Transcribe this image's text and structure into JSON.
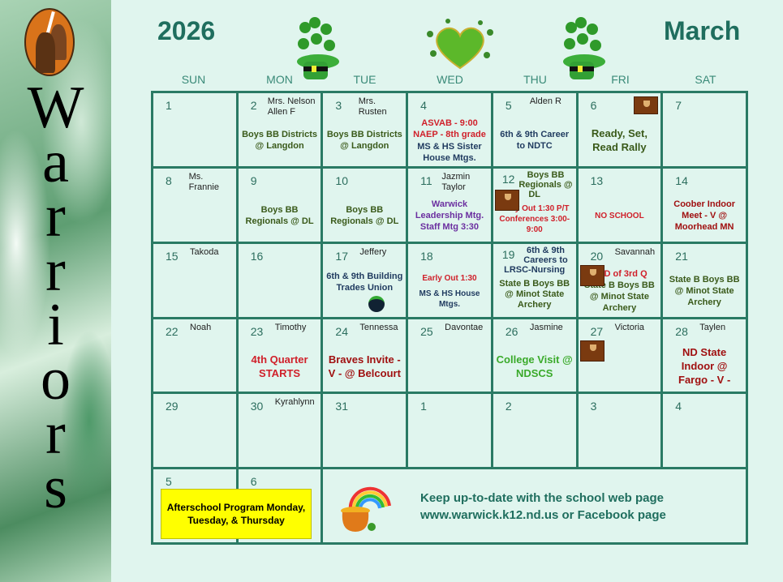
{
  "sidebar": {
    "word": "Warriors",
    "logo": "warriors-logo"
  },
  "header": {
    "year": "2026",
    "month": "March"
  },
  "days_of_week": [
    "SUN",
    "MON",
    "TUE",
    "WED",
    "THU",
    "FRI",
    "SAT"
  ],
  "colors": {
    "heading": "#1f6e5e",
    "grid": "#2a7a64",
    "background": "#e0f5ee",
    "green": "#3a5a1a",
    "navy": "#1f3a5f",
    "red": "#d0202a",
    "darkred": "#a01010",
    "purple": "#6b2fa0",
    "bright_green": "#3aaa2a",
    "highlight": "#ffff00"
  },
  "cells": [
    {
      "day": "1"
    },
    {
      "day": "2",
      "name": "Mrs. Nelson Allen F",
      "events": [
        {
          "text": "Boys BB  Districts @ Langdon",
          "color": "green"
        }
      ]
    },
    {
      "day": "3",
      "name": "Mrs. Rusten",
      "events": [
        {
          "text": "Boys BB  Districts @ Langdon",
          "color": "green"
        }
      ]
    },
    {
      "day": "4",
      "events": [
        {
          "text": "ASVAB - 9:00 NAEP - 8th grade",
          "color": "red"
        },
        {
          "text": "MS & HS Sister House Mtgs.",
          "color": "navy"
        }
      ]
    },
    {
      "day": "5",
      "name": "Alden R",
      "events": [
        {
          "text": "6th & 9th Career to NDTC",
          "color": "navy"
        }
      ]
    },
    {
      "day": "6",
      "icon": "book-icon",
      "events": [
        {
          "text": "Ready, Set, Read Rally",
          "color": "green",
          "big": true
        }
      ]
    },
    {
      "day": "7"
    },
    {
      "day": "8",
      "name": "Ms. Frannie"
    },
    {
      "day": "9",
      "events": [
        {
          "text": "Boys BB Regionals @ DL",
          "color": "green"
        }
      ]
    },
    {
      "day": "10",
      "events": [
        {
          "text": "Boys BB Regionals @ DL",
          "color": "green"
        }
      ]
    },
    {
      "day": "11",
      "name": "Jazmin Taylor",
      "events": [
        {
          "text": "Warwick Leadership Mtg. Staff Mtg 3:30",
          "color": "purple"
        }
      ]
    },
    {
      "day": "12",
      "name": "Boys BB Regionals @ DL",
      "icon": "book-icon",
      "events": [
        {
          "text": "Early Out 1:30 P/T  Conferences 3:00-9:00",
          "color": "red",
          "small": true
        }
      ]
    },
    {
      "day": "13",
      "events": [
        {
          "text": "NO SCHOOL",
          "color": "red",
          "small": true
        }
      ]
    },
    {
      "day": "14",
      "events": [
        {
          "text": "Coober Indoor Meet - V   @ Moorhead MN",
          "color": "darkred"
        }
      ]
    },
    {
      "day": "15",
      "name": "Takoda"
    },
    {
      "day": "16"
    },
    {
      "day": "17",
      "name": "Jeffery",
      "icon": "st-patricks-pot-icon",
      "events": [
        {
          "text": "6th & 9th Building Trades Union",
          "color": "navy"
        }
      ]
    },
    {
      "day": "18",
      "events": [
        {
          "text": "Early Out 1:30",
          "color": "red",
          "small": true
        },
        {
          "text": "MS & HS House Mtgs.",
          "color": "navy",
          "small": true
        }
      ]
    },
    {
      "day": "19",
      "name": "6th & 9th Careers to LRSC-Nursing",
      "events": [
        {
          "text": "State B Boys BB @ Minot State Archery",
          "color": "green"
        }
      ]
    },
    {
      "day": "20",
      "name": "Savannah",
      "icon": "book-icon",
      "events": [
        {
          "text": "END of 3rd Q",
          "color": "red"
        },
        {
          "text": "State B Boys BB @ Minot State Archery",
          "color": "green"
        }
      ]
    },
    {
      "day": "21",
      "events": [
        {
          "text": "State B Boys BB @ Minot State Archery",
          "color": "green"
        }
      ]
    },
    {
      "day": "22",
      "name": "Noah"
    },
    {
      "day": "23",
      "name": "Timothy",
      "events": [
        {
          "text": "4th Quarter STARTS",
          "color": "red",
          "big": true
        }
      ]
    },
    {
      "day": "24",
      "name": "Tennessa",
      "events": [
        {
          "text": "Braves Invite  - V - @ Belcourt",
          "color": "darkred",
          "big": true
        }
      ]
    },
    {
      "day": "25",
      "name": "Davontae"
    },
    {
      "day": "26",
      "name": "Jasmine",
      "events": [
        {
          "text": "College Visit @ NDSCS",
          "color": "bright_green",
          "big": true
        }
      ]
    },
    {
      "day": "27",
      "name": "Victoria",
      "icon": "book-icon"
    },
    {
      "day": "28",
      "name": "Taylen",
      "events": [
        {
          "text": "ND State Indoor @ Fargo - V -",
          "color": "darkred",
          "big": true
        }
      ]
    },
    {
      "day": "29"
    },
    {
      "day": "30",
      "name": "Kyrahlynn"
    },
    {
      "day": "31"
    },
    {
      "day": "1"
    },
    {
      "day": "2"
    },
    {
      "day": "3"
    },
    {
      "day": "4"
    },
    {
      "day": "5"
    },
    {
      "day": "6"
    }
  ],
  "afterschool": "Afterschool Program Monday, Tuesday, & Thursday",
  "info": {
    "line1": "Keep up-to-date with the school web page",
    "line2": "www.warwick.k12.nd.us  or  Facebook page"
  }
}
